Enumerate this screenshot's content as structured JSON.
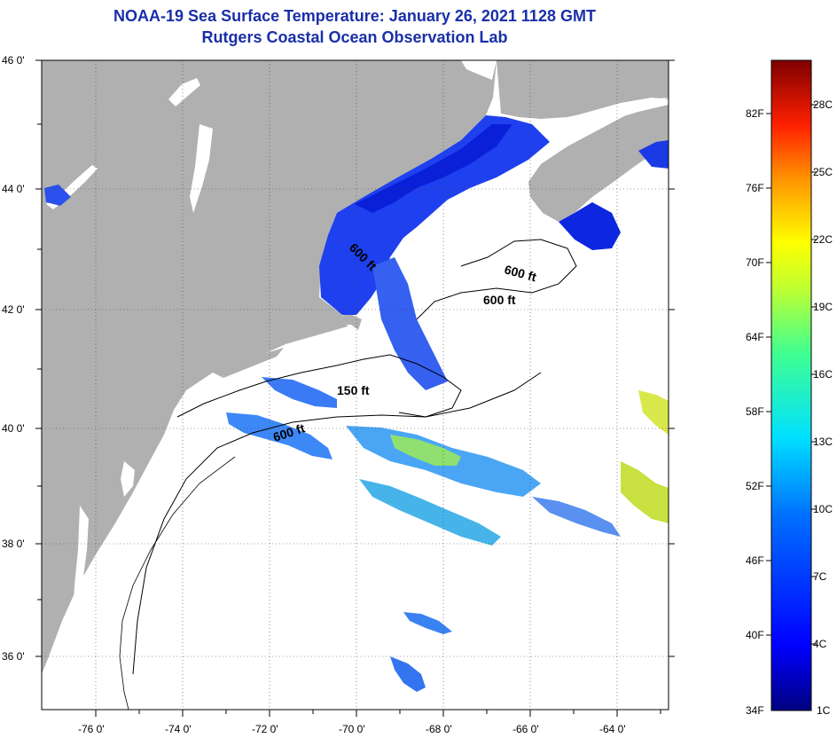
{
  "header": {
    "title": "NOAA-19 Sea Surface Temperature:  January 26, 2021 1128 GMT",
    "subtitle": "Rutgers Coastal Ocean Observation Lab"
  },
  "axes": {
    "lat_labels": [
      "46 0'",
      "44 0'",
      "42 0'",
      "40 0'",
      "38 0'",
      "36 0'"
    ],
    "lon_labels": [
      "-76 0'",
      "-74 0'",
      "-72 0'",
      "-70 0'",
      "-68 0'",
      "-66 0'",
      "-64 0'"
    ]
  },
  "contours": [
    "600 ft",
    "600 ft",
    "600 ft",
    "150 ft",
    "600 ft"
  ],
  "colorbar": {
    "fahrenheit": [
      "82F",
      "76F",
      "70F",
      "64F",
      "58F",
      "52F",
      "46F",
      "40F",
      "34F"
    ],
    "celsius": [
      "28C",
      "25C",
      "22C",
      "19C",
      "16C",
      "13C",
      "10C",
      "7C",
      "4C",
      "1C"
    ]
  },
  "colors": {
    "land": "#b0b0b0",
    "title": "#1a2fa8",
    "cold_water": "#1430e6"
  }
}
